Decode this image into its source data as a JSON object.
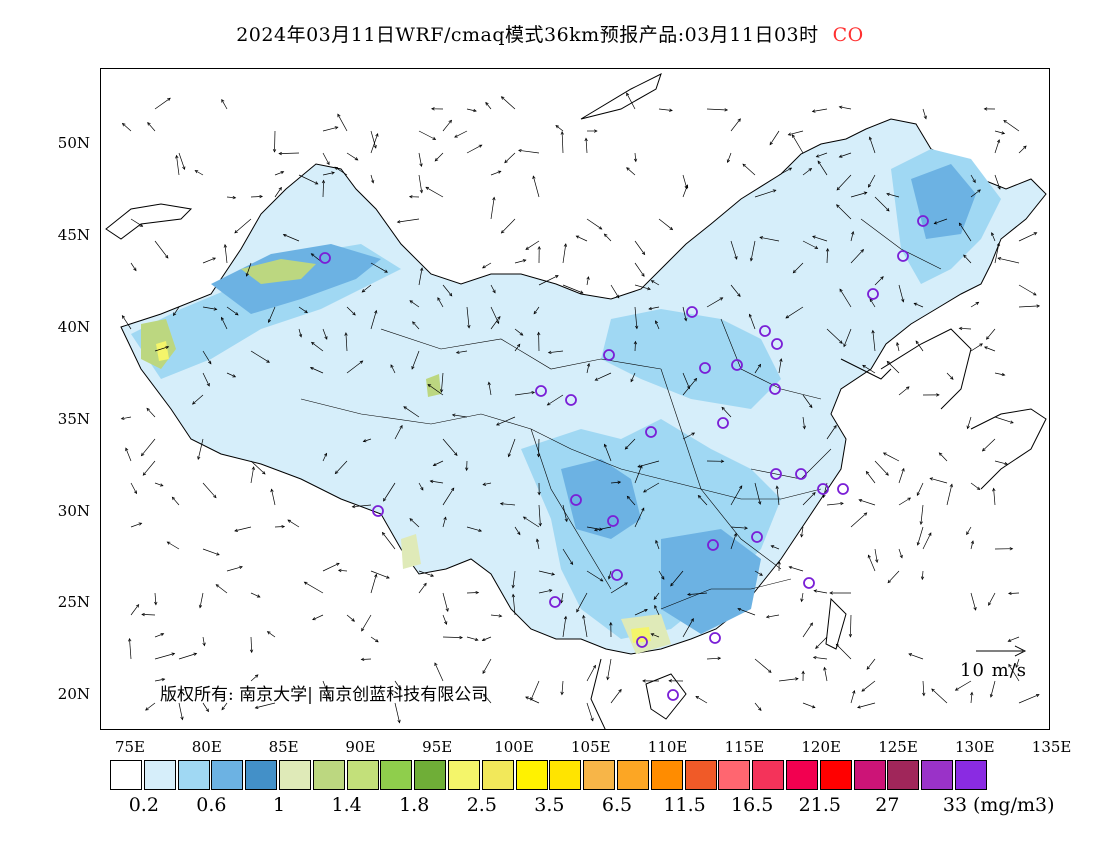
{
  "title": {
    "main": "2024年03月11日WRF/cmaq模式36km预报产品:03月11日03时",
    "species": "CO",
    "species_color": "#ff3030"
  },
  "map": {
    "lat_ticks": [
      "50N",
      "45N",
      "40N",
      "35N",
      "30N",
      "25N",
      "20N"
    ],
    "lon_ticks": [
      "75E",
      "80E",
      "85E",
      "90E",
      "95E",
      "100E",
      "105E",
      "110E",
      "115E",
      "120E",
      "125E",
      "130E",
      "135E"
    ],
    "copyright": "版权所有: 南京大学| 南京创蓝科技有限公司",
    "wind_scale_label": "10 m/s"
  },
  "legend": {
    "colors": [
      "#ffffff",
      "#d6eefa",
      "#a0d8f3",
      "#6cb2e3",
      "#4390c8",
      "#dfeab8",
      "#bcd780",
      "#c3e07a",
      "#8fce4c",
      "#6fae37",
      "#f4f56a",
      "#f2e85a",
      "#fff200",
      "#ffe400",
      "#f7b548",
      "#fca624",
      "#ff8c00",
      "#f05a28",
      "#ff6670",
      "#f4335a",
      "#f20050",
      "#ff0000",
      "#cc1477",
      "#a0265a",
      "#9a32c8",
      "#8a2be2"
    ],
    "labels": [
      "0.2",
      "0.6",
      "1",
      "1.4",
      "1.8",
      "2.5",
      "3.5",
      "6.5",
      "11.5",
      "16.5",
      "21.5",
      "27",
      "33"
    ],
    "unit": "(mg/m3)"
  }
}
